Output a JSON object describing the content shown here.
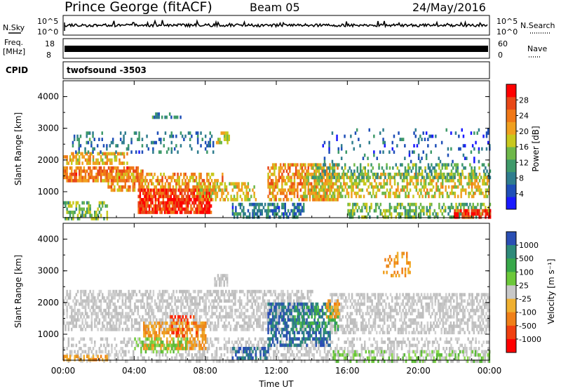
{
  "header": {
    "site": "Prince George (fitACF)",
    "beam": "Beam 05",
    "date": "24/May/2016"
  },
  "summary": {
    "nsky_label": "N.Sky",
    "nsearch_label": "N.Search",
    "freq_label_line1": "Freq.",
    "freq_label_line2": "[MHz]",
    "nave_label": "Nave",
    "cpid_label": "CPID",
    "cpid_value": "twofsound -3503",
    "noise_ticks": [
      "10^5",
      "10^0"
    ],
    "freq_ticks": [
      "18",
      "8"
    ],
    "nave_ticks": [
      "60",
      "0"
    ]
  },
  "chart_data": [
    {
      "type": "heatmap",
      "name": "power",
      "ylabel": "Slant Range [km]",
      "xlabel": "",
      "x_ticks": [
        "00:00",
        "04:00",
        "08:00",
        "12:00",
        "16:00",
        "20:00",
        "00:00"
      ],
      "x_range_hours": [
        0,
        24
      ],
      "ylim": [
        180,
        4500
      ],
      "y_ticks": [
        1000,
        2000,
        3000,
        4000
      ],
      "colorbar": {
        "label": "Power [dB]",
        "range": [
          0,
          32
        ],
        "ticks": [
          4,
          8,
          12,
          16,
          20,
          24,
          28
        ],
        "colors": [
          "#1a1aff",
          "#1f4fb8",
          "#2f7d8e",
          "#3f9a6a",
          "#6fb84a",
          "#c8c81e",
          "#f0a020",
          "#f07818",
          "#e84818",
          "#ff0000"
        ]
      },
      "bands": [
        {
          "t0": 0.0,
          "t1": 3.6,
          "r0": 1900,
          "r1": 2250,
          "value": 20,
          "fill": 0.6
        },
        {
          "t0": 0.0,
          "t1": 4.5,
          "r0": 1400,
          "r1": 1800,
          "value": 24,
          "fill": 0.75
        },
        {
          "t0": 2.5,
          "t1": 9.0,
          "r0": 1100,
          "r1": 1600,
          "value": 22,
          "fill": 0.55
        },
        {
          "t0": 4.2,
          "t1": 8.3,
          "r0": 400,
          "r1": 1100,
          "value": 28,
          "fill": 0.85
        },
        {
          "t0": 0.0,
          "t1": 2.5,
          "r0": 200,
          "r1": 700,
          "value": 14,
          "fill": 0.5
        },
        {
          "t0": 7.5,
          "t1": 10.8,
          "r0": 800,
          "r1": 1300,
          "value": 18,
          "fill": 0.5
        },
        {
          "t0": 9.5,
          "t1": 13.5,
          "r0": 200,
          "r1": 650,
          "value": 8,
          "fill": 0.55
        },
        {
          "t0": 11.5,
          "t1": 15.5,
          "r0": 800,
          "r1": 1900,
          "value": 22,
          "fill": 0.6
        },
        {
          "t0": 13.5,
          "t1": 24.0,
          "r0": 850,
          "r1": 1600,
          "value": 18,
          "fill": 0.5
        },
        {
          "t0": 14.0,
          "t1": 24.0,
          "r0": 1500,
          "r1": 1900,
          "value": 12,
          "fill": 0.35
        },
        {
          "t0": 16.0,
          "t1": 24.0,
          "r0": 200,
          "r1": 650,
          "value": 14,
          "fill": 0.45
        },
        {
          "t0": 22.0,
          "t1": 24.0,
          "r0": 200,
          "r1": 450,
          "value": 28,
          "fill": 0.7
        },
        {
          "t0": 14.5,
          "t1": 24.0,
          "r0": 2000,
          "r1": 3000,
          "value": 6,
          "fill": 0.12
        },
        {
          "t0": 0.5,
          "t1": 8.5,
          "r0": 2300,
          "r1": 2900,
          "value": 8,
          "fill": 0.18
        },
        {
          "t0": 5.0,
          "t1": 6.8,
          "r0": 3350,
          "r1": 3500,
          "value": 8,
          "fill": 0.3
        },
        {
          "t0": 8.6,
          "t1": 9.3,
          "r0": 2600,
          "r1": 2900,
          "value": 16,
          "fill": 0.5
        }
      ]
    },
    {
      "type": "heatmap",
      "name": "velocity",
      "ylabel": "Slant Range [km]",
      "xlabel": "Time UT",
      "x_ticks": [
        "00:00",
        "04:00",
        "08:00",
        "12:00",
        "16:00",
        "20:00",
        "00:00"
      ],
      "x_range_hours": [
        0,
        24
      ],
      "ylim": [
        180,
        4500
      ],
      "y_ticks": [
        1000,
        2000,
        3000,
        4000
      ],
      "colorbar": {
        "label": "Velocity [m s⁻¹]",
        "ticks": [
          "1000",
          "500",
          "100",
          "25",
          "-25",
          "-100",
          "-500",
          "-1000"
        ],
        "colors": [
          "#2b4fb4",
          "#2e8a7a",
          "#38a84a",
          "#6cc83a",
          "#c8c8c8",
          "#f0b030",
          "#f08018",
          "#f04010",
          "#ff0000"
        ]
      },
      "bands": [
        {
          "t0": 0.0,
          "t1": 14.0,
          "r0": 1200,
          "r1": 2400,
          "value": "gray",
          "fill": 0.55
        },
        {
          "t0": 15.0,
          "t1": 24.0,
          "r0": 1100,
          "r1": 2300,
          "value": "gray",
          "fill": 0.55
        },
        {
          "t0": 0.0,
          "t1": 24.0,
          "r0": 200,
          "r1": 900,
          "value": "gray",
          "fill": 0.35
        },
        {
          "t0": 4.5,
          "t1": 8.0,
          "r0": 550,
          "r1": 1400,
          "value": "orange",
          "fill": 0.6
        },
        {
          "t0": 6.0,
          "t1": 7.5,
          "r0": 1000,
          "r1": 1600,
          "value": "red",
          "fill": 0.25
        },
        {
          "t0": 4.0,
          "t1": 7.0,
          "r0": 500,
          "r1": 900,
          "value": "lightgreen",
          "fill": 0.4
        },
        {
          "t0": 9.5,
          "t1": 11.5,
          "r0": 250,
          "r1": 600,
          "value": "blue",
          "fill": 0.5
        },
        {
          "t0": 11.5,
          "t1": 15.0,
          "r0": 700,
          "r1": 2000,
          "value": "blue",
          "fill": 0.55
        },
        {
          "t0": 13.0,
          "t1": 15.5,
          "r0": 1200,
          "r1": 1900,
          "value": "green",
          "fill": 0.4
        },
        {
          "t0": 14.8,
          "t1": 15.6,
          "r0": 1600,
          "r1": 2100,
          "value": "orange",
          "fill": 0.5
        },
        {
          "t0": 0.0,
          "t1": 2.5,
          "r0": 200,
          "r1": 350,
          "value": "orange",
          "fill": 0.5
        },
        {
          "t0": 18.0,
          "t1": 19.5,
          "r0": 2900,
          "r1": 3600,
          "value": "orange",
          "fill": 0.3
        },
        {
          "t0": 8.5,
          "t1": 9.2,
          "r0": 2600,
          "r1": 2900,
          "value": "gray",
          "fill": 0.6
        },
        {
          "t0": 15.0,
          "t1": 24.0,
          "r0": 200,
          "r1": 500,
          "value": "lightgreen",
          "fill": 0.25
        }
      ]
    }
  ]
}
